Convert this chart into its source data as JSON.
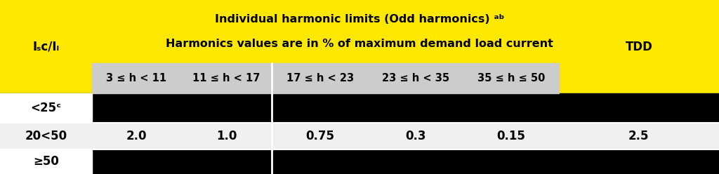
{
  "title_line1": "Individual harmonic limits (Odd harmonics) ᵃᵇ",
  "title_line2": "Harmonics values are in % of maximum demand load current",
  "col_header_isc": "Iₛᴄ/Iₗ",
  "col_header_tdd": "TDD",
  "sub_headers": [
    "3 ≤ h < 11",
    "11 ≤ h < 17",
    "17 ≤ h < 23",
    "23 ≤ h < 35",
    "35 ≤ h ≤ 50"
  ],
  "rows": [
    {
      "label": "<25ᶜ",
      "values": [
        "",
        "",
        "",
        "",
        "",
        ""
      ]
    },
    {
      "label": "20<50",
      "values": [
        "2.0",
        "1.0",
        "0.75",
        "0.3",
        "0.15",
        "2.5"
      ]
    },
    {
      "label": "≥50",
      "values": [
        "",
        "",
        "",
        "",
        "",
        ""
      ]
    }
  ],
  "yellow": "#FFE800",
  "black": "#000000",
  "white": "#FFFFFF",
  "light_gray": "#F0F0F0",
  "sub_gray": "#CCCCCC",
  "header_text_color": "#000000",
  "fig_width": 10.24,
  "fig_height": 2.48,
  "dpi": 100,
  "col_bounds": [
    0.0,
    0.128,
    0.252,
    0.378,
    0.512,
    0.645,
    0.777,
    1.0
  ],
  "row_tops": [
    1.0,
    0.638,
    0.462,
    0.295,
    0.143,
    0.0
  ]
}
